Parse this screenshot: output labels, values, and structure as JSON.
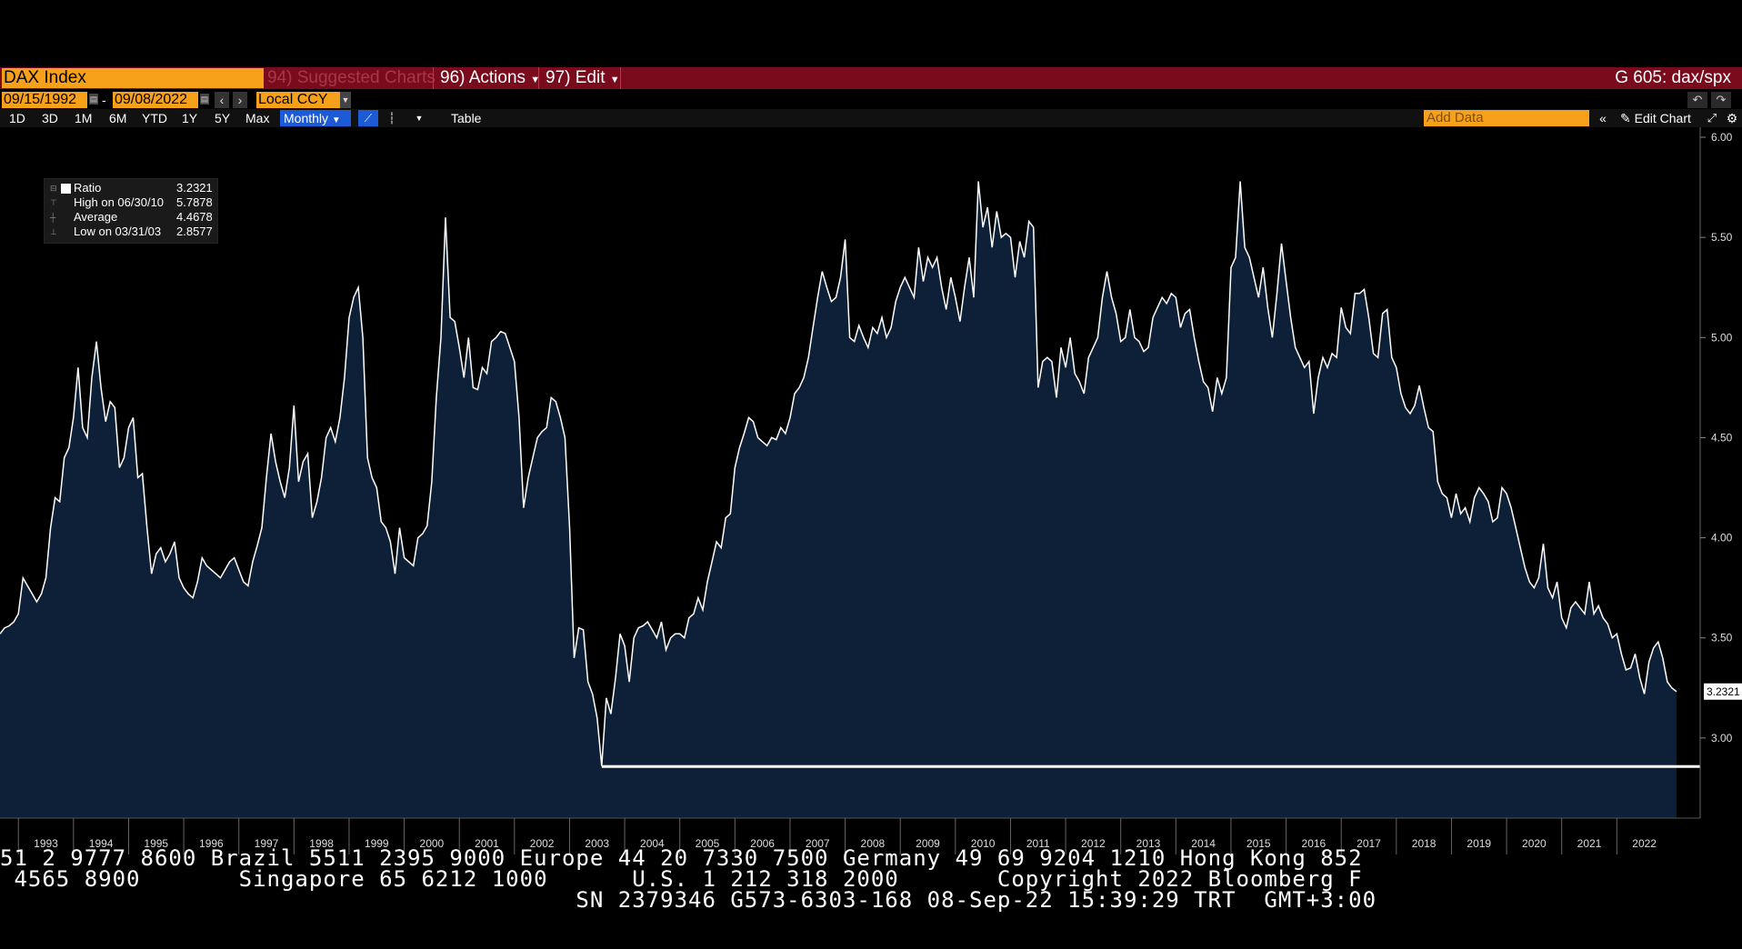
{
  "titlebar": {
    "ticker": "DAX Index",
    "suggested_num": "94)",
    "suggested_label": "Suggested Charts",
    "actions_num": "96)",
    "actions_label": "Actions",
    "edit_num": "97)",
    "edit_label": "Edit",
    "chart_code": "G 605: dax/spx"
  },
  "daterow": {
    "start_date": "09/15/1992",
    "end_date": "09/08/2022",
    "dash": "-",
    "currency": "Local CCY"
  },
  "toolbar": {
    "periods": [
      "1D",
      "3D",
      "1M",
      "6M",
      "YTD",
      "1Y",
      "5Y",
      "Max"
    ],
    "frequency": "Monthly",
    "table_label": "Table",
    "add_data_placeholder": "Add Data",
    "edit_chart_label": "Edit Chart"
  },
  "legend": {
    "series_name": "Ratio",
    "series_value": "3.2321",
    "high_label": "High on 06/30/10",
    "high_value": "5.7878",
    "avg_label": "Average",
    "avg_value": "4.4678",
    "low_label": "Low on 03/31/03",
    "low_value": "2.8577"
  },
  "chart_data": {
    "type": "area",
    "series": [
      {
        "name": "Ratio"
      }
    ],
    "x_start": "1992-09",
    "x_end": "2022-09",
    "x_ticks": [
      "1993",
      "1994",
      "1995",
      "1996",
      "1997",
      "1998",
      "1999",
      "2000",
      "2001",
      "2002",
      "2003",
      "2004",
      "2005",
      "2006",
      "2007",
      "2008",
      "2009",
      "2010",
      "2011",
      "2012",
      "2013",
      "2014",
      "2015",
      "2016",
      "2017",
      "2018",
      "2019",
      "2020",
      "2021",
      "2022"
    ],
    "y_ticks": [
      "6.00",
      "5.50",
      "5.00",
      "4.50",
      "4.00",
      "3.50",
      "3.00"
    ],
    "ylim": [
      2.6,
      6.05
    ],
    "last_value_label": "3.2321",
    "low_line_value": 2.8577,
    "colors": {
      "fill": "#0e2038",
      "line": "#ffffff",
      "low_line": "#ffffff"
    },
    "values": [
      3.52,
      3.55,
      3.56,
      3.58,
      3.62,
      3.8,
      3.76,
      3.72,
      3.68,
      3.72,
      3.8,
      4.05,
      4.2,
      4.18,
      4.4,
      4.45,
      4.6,
      4.85,
      4.55,
      4.5,
      4.8,
      4.98,
      4.75,
      4.58,
      4.68,
      4.65,
      4.35,
      4.4,
      4.55,
      4.6,
      4.3,
      4.32,
      4.05,
      3.82,
      3.92,
      3.95,
      3.88,
      3.92,
      3.98,
      3.8,
      3.75,
      3.72,
      3.7,
      3.78,
      3.9,
      3.86,
      3.84,
      3.82,
      3.8,
      3.84,
      3.88,
      3.9,
      3.84,
      3.78,
      3.76,
      3.88,
      3.96,
      4.05,
      4.3,
      4.52,
      4.38,
      4.28,
      4.2,
      4.35,
      4.66,
      4.28,
      4.38,
      4.42,
      4.1,
      4.18,
      4.3,
      4.5,
      4.55,
      4.48,
      4.6,
      4.8,
      5.1,
      5.2,
      5.25,
      5.0,
      4.4,
      4.3,
      4.25,
      4.08,
      4.05,
      3.98,
      3.82,
      4.05,
      3.9,
      3.88,
      3.86,
      4.0,
      4.02,
      4.06,
      4.28,
      4.7,
      5.0,
      5.6,
      5.1,
      5.08,
      4.95,
      4.8,
      5.0,
      4.75,
      4.74,
      4.85,
      4.82,
      4.98,
      5.0,
      5.03,
      5.02,
      4.95,
      4.88,
      4.6,
      4.15,
      4.3,
      4.4,
      4.5,
      4.53,
      4.55,
      4.7,
      4.68,
      4.6,
      4.5,
      4.05,
      3.4,
      3.55,
      3.54,
      3.28,
      3.22,
      3.1,
      2.86,
      3.2,
      3.12,
      3.3,
      3.52,
      3.46,
      3.28,
      3.5,
      3.55,
      3.56,
      3.58,
      3.54,
      3.5,
      3.58,
      3.44,
      3.5,
      3.52,
      3.52,
      3.5,
      3.6,
      3.62,
      3.7,
      3.64,
      3.78,
      3.88,
      3.98,
      3.95,
      4.1,
      4.12,
      4.35,
      4.45,
      4.52,
      4.6,
      4.58,
      4.5,
      4.48,
      4.46,
      4.5,
      4.49,
      4.55,
      4.52,
      4.6,
      4.72,
      4.75,
      4.8,
      4.9,
      5.05,
      5.2,
      5.33,
      5.25,
      5.18,
      5.2,
      5.3,
      5.49,
      5.0,
      4.98,
      5.06,
      5.0,
      4.95,
      5.05,
      5.02,
      5.1,
      5.0,
      5.05,
      5.18,
      5.25,
      5.3,
      5.25,
      5.2,
      5.45,
      5.28,
      5.4,
      5.35,
      5.4,
      5.25,
      5.14,
      5.3,
      5.2,
      5.08,
      5.25,
      5.4,
      5.2,
      5.78,
      5.55,
      5.65,
      5.45,
      5.63,
      5.5,
      5.52,
      5.5,
      5.3,
      5.48,
      5.4,
      5.58,
      5.55,
      4.75,
      4.88,
      4.9,
      4.88,
      4.7,
      4.95,
      4.85,
      5.0,
      4.82,
      4.78,
      4.72,
      4.9,
      4.95,
      5.0,
      5.2,
      5.33,
      5.2,
      5.12,
      4.98,
      5.0,
      5.14,
      5.0,
      4.98,
      4.93,
      4.95,
      5.1,
      5.15,
      5.2,
      5.17,
      5.22,
      5.2,
      5.05,
      5.12,
      5.14,
      5.0,
      4.88,
      4.78,
      4.75,
      4.63,
      4.8,
      4.72,
      4.8,
      5.35,
      5.4,
      5.78,
      5.45,
      5.4,
      5.3,
      5.2,
      5.35,
      5.15,
      5.0,
      5.22,
      5.47,
      5.28,
      5.1,
      4.95,
      4.9,
      4.85,
      4.88,
      4.62,
      4.8,
      4.9,
      4.85,
      4.92,
      4.9,
      5.15,
      5.05,
      5.02,
      5.22,
      5.22,
      5.24,
      5.1,
      4.92,
      4.9,
      5.12,
      5.14,
      4.9,
      4.85,
      4.72,
      4.65,
      4.62,
      4.66,
      4.76,
      4.65,
      4.55,
      4.53,
      4.28,
      4.22,
      4.2,
      4.1,
      4.22,
      4.12,
      4.15,
      4.08,
      4.2,
      4.25,
      4.22,
      4.18,
      4.08,
      4.1,
      4.25,
      4.22,
      4.15,
      4.05,
      3.95,
      3.85,
      3.78,
      3.75,
      3.8,
      3.97,
      3.75,
      3.7,
      3.78,
      3.6,
      3.55,
      3.65,
      3.68,
      3.65,
      3.62,
      3.78,
      3.62,
      3.66,
      3.6,
      3.57,
      3.5,
      3.52,
      3.42,
      3.34,
      3.35,
      3.42,
      3.3,
      3.22,
      3.38,
      3.45,
      3.48,
      3.4,
      3.28,
      3.25,
      3.2321
    ]
  },
  "tape": {
    "line1": "51 2 9777 8600 Brazil 5511 2395 9000 Europe 44 20 7330 7500 Germany 49 69 9204 1210 Hong Kong 852",
    "line2": " 4565 8900       Singapore 65 6212 1000      U.S. 1 212 318 2000       Copyright 2022 Bloomberg F",
    "line3": "                                         SN 2379346 G573-6303-168 08-Sep-22 15:39:29 TRT  GMT+3:00"
  }
}
